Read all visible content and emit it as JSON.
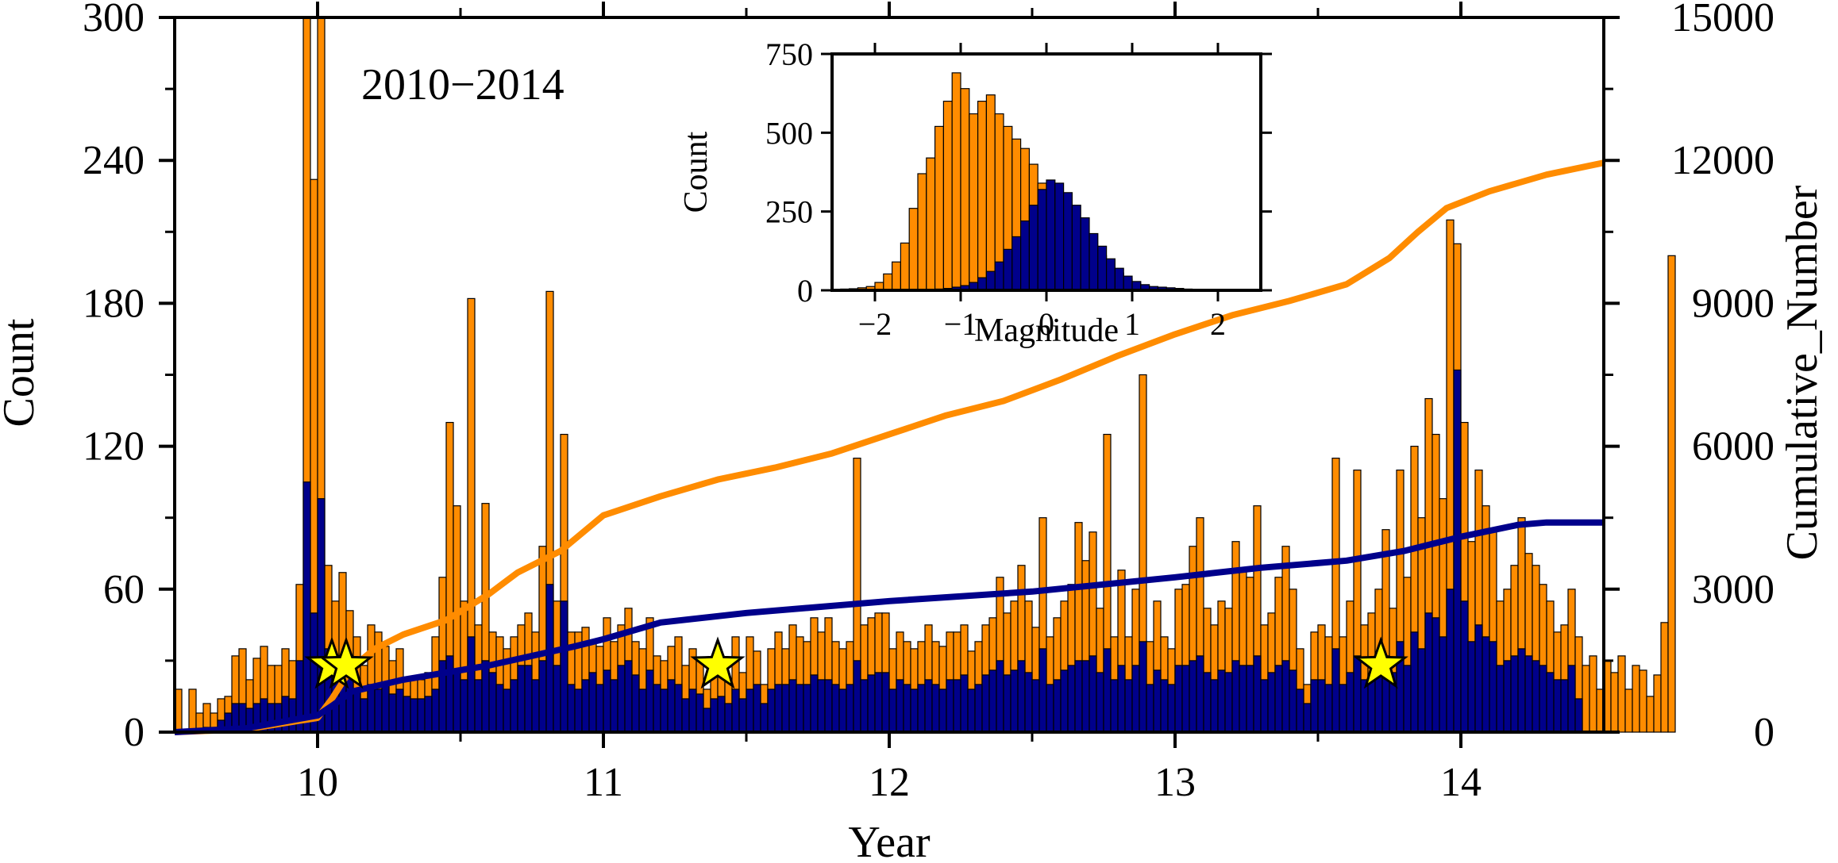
{
  "chart_data": {
    "type": "bar",
    "annotation": "2010−2014",
    "xlabel": "Year",
    "ylabel": "Count",
    "y2label": "Cumulative_Number",
    "xlim": [
      9.5,
      14.5
    ],
    "ylim": [
      0,
      300
    ],
    "y2lim": [
      0,
      15000
    ],
    "x_ticks": [
      10,
      11,
      12,
      13,
      14
    ],
    "y_ticks": [
      0,
      60,
      120,
      180,
      240,
      300
    ],
    "y2_ticks": [
      0,
      3000,
      6000,
      9000,
      12000,
      15000
    ],
    "bin_width": 0.025,
    "series": [
      {
        "name": "",
        "color": "#ff8c00",
        "values": [
          18,
          0,
          18,
          8,
          12,
          8,
          14,
          15,
          32,
          35,
          22,
          31,
          36,
          28,
          28,
          35,
          30,
          62,
          300,
          232,
          300,
          70,
          55,
          67,
          51,
          40,
          28,
          45,
          42,
          36,
          30,
          35,
          22,
          22,
          22,
          25,
          40,
          65,
          130,
          95,
          55,
          182,
          45,
          96,
          42,
          40,
          35,
          40,
          45,
          50,
          42,
          78,
          185,
          55,
          125,
          42,
          42,
          44,
          38,
          36,
          48,
          38,
          45,
          52,
          38,
          35,
          48,
          32,
          30,
          36,
          40,
          28,
          35,
          30,
          18,
          25,
          28,
          22,
          40,
          25,
          40,
          34,
          20,
          35,
          42,
          35,
          45,
          40,
          38,
          48,
          42,
          48,
          38,
          35,
          38,
          115,
          45,
          48,
          50,
          50,
          35,
          42,
          38,
          35,
          38,
          45,
          38,
          36,
          42,
          42,
          45,
          34,
          38,
          45,
          48,
          65,
          50,
          55,
          70,
          55,
          44,
          90,
          40,
          48,
          55,
          62,
          88,
          72,
          84,
          52,
          125,
          40,
          68,
          40,
          60,
          150,
          38,
          55,
          40,
          35,
          60,
          62,
          78,
          90,
          52,
          45,
          55,
          52,
          80,
          68,
          65,
          95,
          45,
          50,
          65,
          78,
          60,
          35,
          20,
          42,
          45,
          40,
          115,
          40,
          55,
          110,
          45,
          50,
          60,
          85,
          52,
          110,
          65,
          120,
          90,
          140,
          125,
          98,
          215,
          205,
          130,
          80,
          110,
          95,
          85,
          55,
          60,
          70,
          90,
          75,
          70,
          62,
          55,
          42,
          45,
          60,
          40,
          28,
          32,
          18,
          30,
          25,
          32,
          18,
          28,
          26,
          15,
          24,
          46,
          200
        ]
      },
      {
        "name": "",
        "color": "#00008b",
        "values": [
          0,
          0,
          0,
          0,
          2,
          2,
          5,
          8,
          12,
          12,
          10,
          12,
          14,
          12,
          12,
          15,
          14,
          30,
          105,
          50,
          98,
          35,
          22,
          28,
          25,
          18,
          14,
          20,
          18,
          20,
          16,
          18,
          15,
          14,
          14,
          15,
          18,
          30,
          32,
          25,
          22,
          40,
          22,
          30,
          25,
          20,
          18,
          22,
          28,
          28,
          22,
          30,
          62,
          28,
          55,
          20,
          18,
          22,
          25,
          20,
          26,
          22,
          28,
          30,
          24,
          18,
          26,
          20,
          18,
          22,
          20,
          14,
          18,
          16,
          10,
          14,
          15,
          12,
          18,
          14,
          18,
          20,
          12,
          18,
          20,
          20,
          22,
          20,
          20,
          24,
          22,
          22,
          20,
          18,
          20,
          30,
          22,
          24,
          25,
          25,
          18,
          22,
          20,
          18,
          20,
          22,
          20,
          18,
          22,
          22,
          24,
          18,
          20,
          24,
          26,
          30,
          24,
          26,
          30,
          25,
          22,
          35,
          20,
          22,
          26,
          28,
          30,
          30,
          32,
          25,
          35,
          22,
          28,
          22,
          28,
          38,
          20,
          26,
          22,
          20,
          28,
          28,
          30,
          32,
          25,
          22,
          26,
          25,
          30,
          28,
          28,
          32,
          22,
          25,
          28,
          30,
          26,
          18,
          12,
          22,
          22,
          20,
          35,
          20,
          25,
          32,
          22,
          24,
          28,
          32,
          25,
          38,
          28,
          42,
          35,
          50,
          48,
          40,
          60,
          152,
          55,
          38,
          45,
          40,
          38,
          28,
          30,
          32,
          35,
          32,
          30,
          28,
          25,
          22,
          22,
          28,
          14,
          0,
          0,
          0,
          0,
          0,
          0,
          0,
          0,
          0,
          0,
          0,
          0,
          0
        ]
      }
    ],
    "cumulative_series": [
      {
        "name": "",
        "color": "#ff8c00",
        "x": [
          9.5,
          9.75,
          10.0,
          10.05,
          10.12,
          10.2,
          10.3,
          10.45,
          10.6,
          10.7,
          10.85,
          10.95,
          11.0,
          11.2,
          11.4,
          11.6,
          11.8,
          12.0,
          12.2,
          12.4,
          12.6,
          12.8,
          13.0,
          13.2,
          13.4,
          13.6,
          13.75,
          13.85,
          13.95,
          14.1,
          14.3,
          14.5
        ],
        "y": [
          0,
          60,
          300,
          700,
          1350,
          1750,
          2050,
          2350,
          2900,
          3350,
          3800,
          4300,
          4550,
          4950,
          5300,
          5550,
          5850,
          6250,
          6650,
          6950,
          7400,
          7900,
          8350,
          8750,
          9050,
          9400,
          9950,
          10500,
          11000,
          11350,
          11700,
          11950
        ]
      },
      {
        "name": "",
        "color": "#00008b",
        "x": [
          9.5,
          9.75,
          10.0,
          10.05,
          10.12,
          10.3,
          10.6,
          10.9,
          11.0,
          11.2,
          11.5,
          12.0,
          12.5,
          13.0,
          13.3,
          13.6,
          13.8,
          14.0,
          14.2,
          14.3,
          14.5
        ],
        "y": [
          0,
          80,
          350,
          550,
          850,
          1100,
          1400,
          1800,
          1950,
          2300,
          2500,
          2750,
          2950,
          3250,
          3450,
          3600,
          3800,
          4100,
          4350,
          4400,
          4400
        ]
      }
    ],
    "events": [
      {
        "x": 10.05,
        "y": 28
      },
      {
        "x": 10.1,
        "y": 28
      },
      {
        "x": 11.4,
        "y": 28
      },
      {
        "x": 13.72,
        "y": 28
      }
    ],
    "inset": {
      "type": "bar",
      "xlabel": "Magnitude",
      "ylabel": "Count",
      "xlim": [
        -2.5,
        2.5
      ],
      "ylim": [
        0,
        750
      ],
      "x_ticks": [
        -2,
        -1,
        0,
        1,
        2
      ],
      "y_ticks": [
        0,
        250,
        500,
        750
      ],
      "bin_width": 0.1,
      "bin_start": -2.5,
      "series": [
        {
          "name": "",
          "color": "#ff8c00",
          "values": [
            2,
            4,
            5,
            8,
            12,
            25,
            52,
            90,
            150,
            260,
            370,
            420,
            520,
            600,
            690,
            640,
            560,
            600,
            620,
            560,
            520,
            480,
            450,
            400,
            340,
            310,
            280,
            260,
            220,
            180,
            140,
            110,
            80,
            55,
            35,
            22,
            14,
            10,
            8,
            6,
            5,
            3,
            2,
            2,
            1,
            1,
            0,
            0,
            0,
            0
          ]
        },
        {
          "name": "",
          "color": "#00008b",
          "values": [
            0,
            0,
            0,
            0,
            0,
            0,
            0,
            0,
            0,
            0,
            0,
            2,
            4,
            6,
            10,
            15,
            25,
            40,
            60,
            90,
            130,
            170,
            220,
            270,
            320,
            350,
            340,
            310,
            270,
            230,
            180,
            140,
            100,
            70,
            45,
            28,
            18,
            12,
            10,
            8,
            6,
            4,
            3,
            2,
            2,
            1,
            1,
            0,
            0,
            0
          ]
        }
      ]
    }
  }
}
